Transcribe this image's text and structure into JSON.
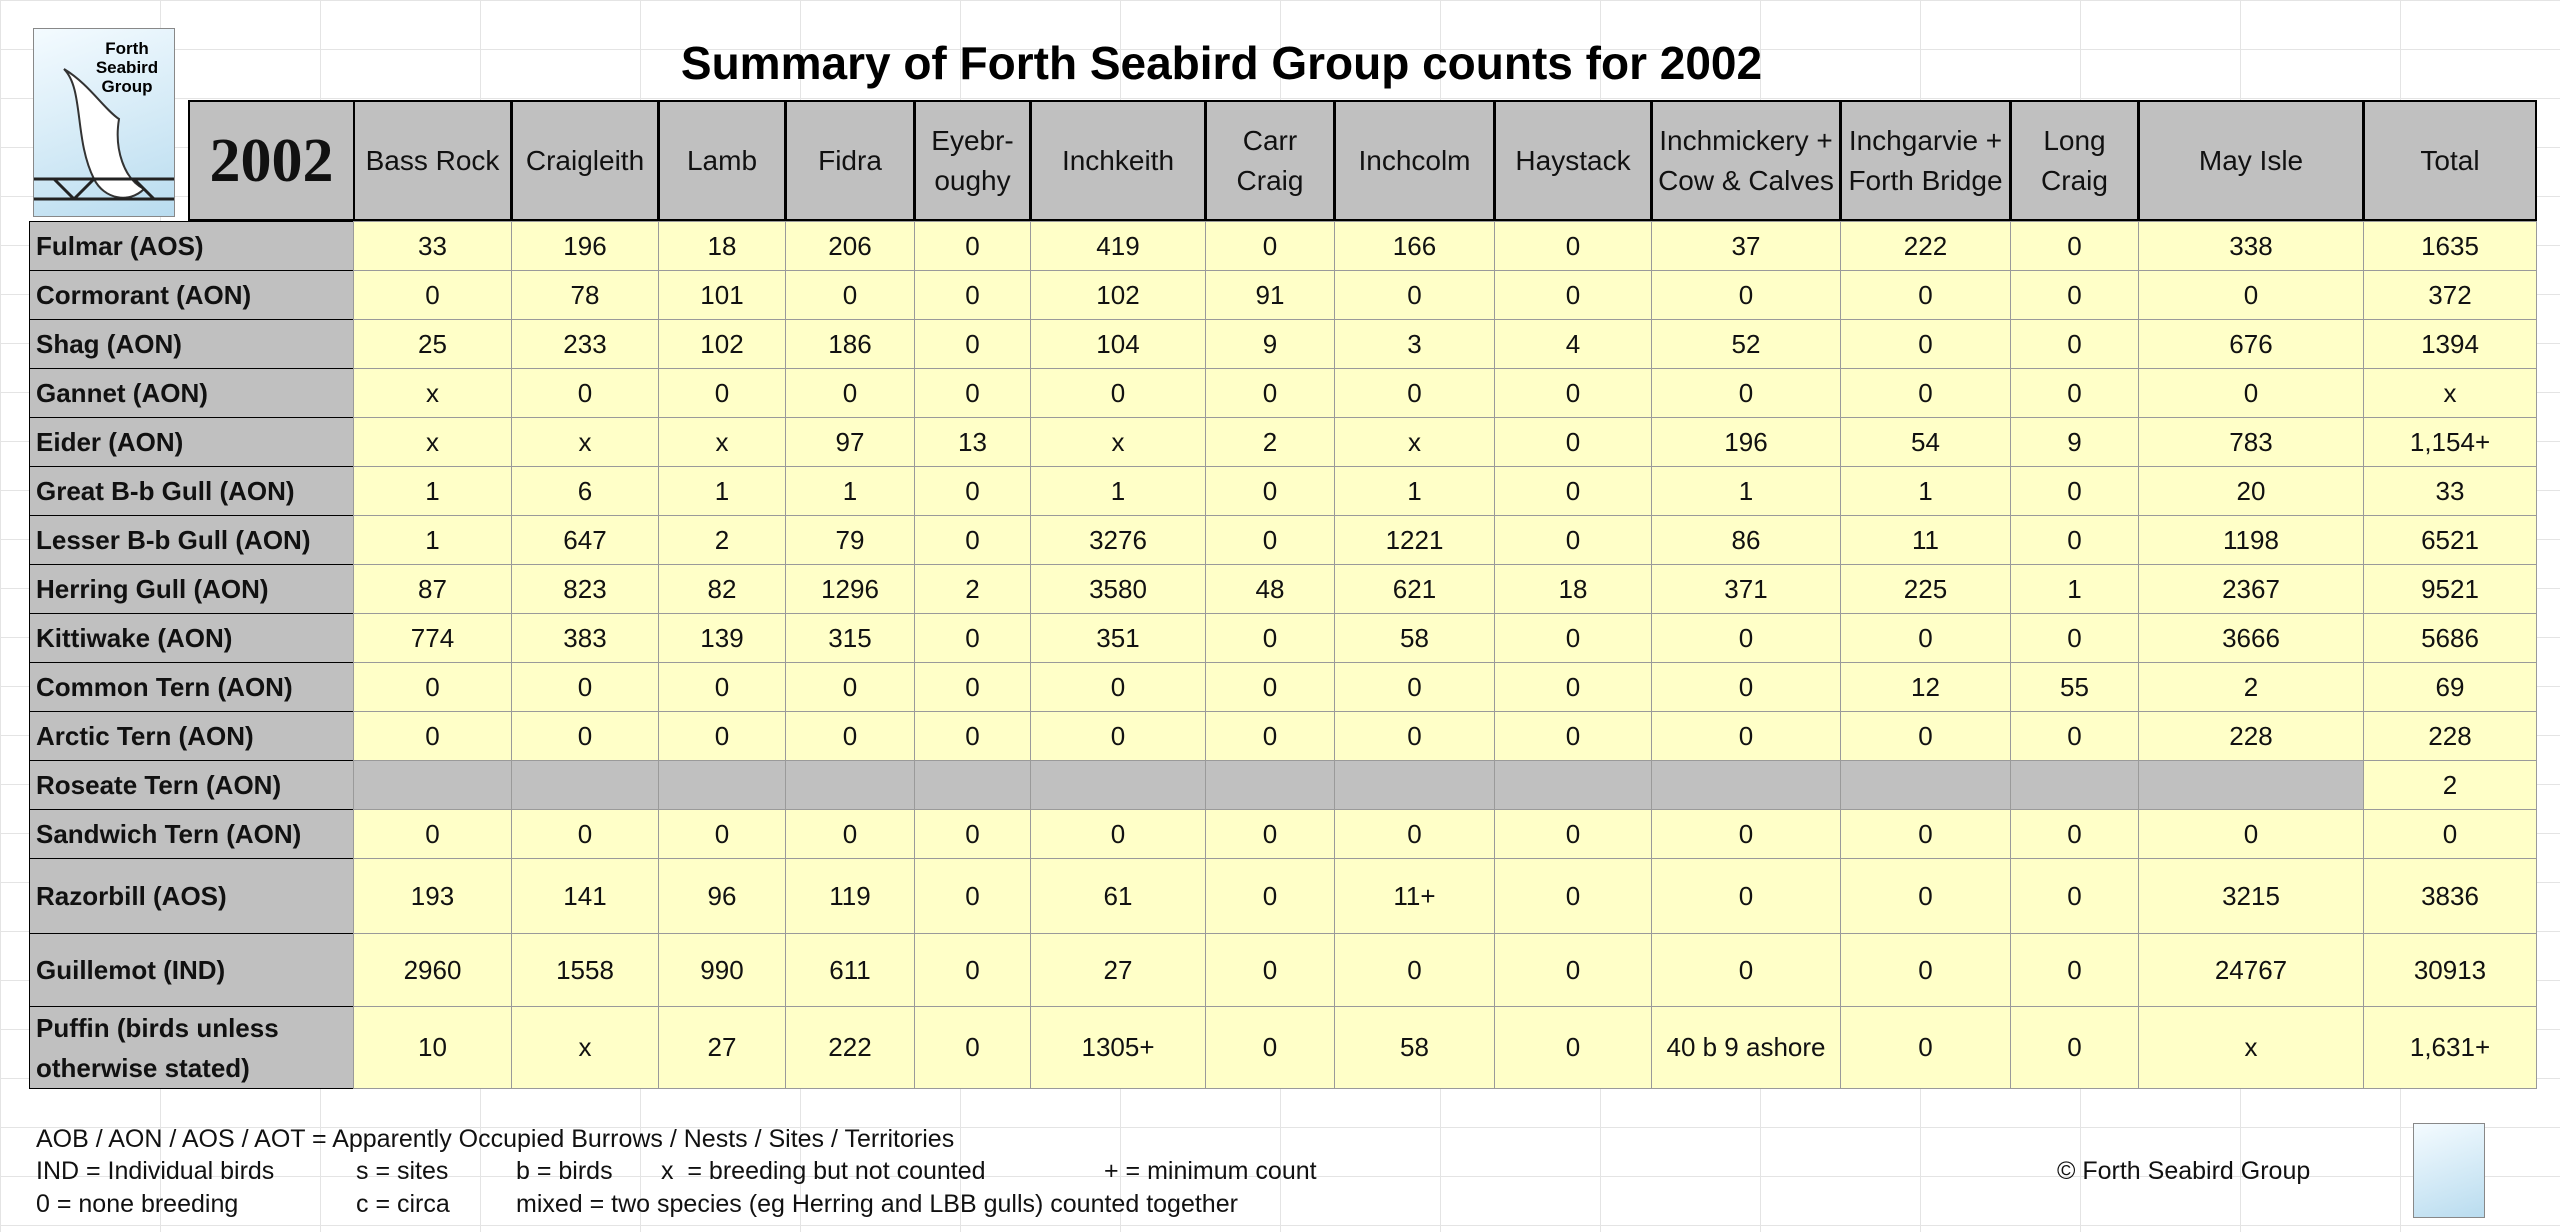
{
  "header": {
    "title": "Summary of Forth Seabird Group counts for 2002",
    "logo_text": "Forth Seabird Group",
    "year": "2002"
  },
  "table": {
    "columns": [
      "Bass Rock",
      "Craigleith",
      "Lamb",
      "Fidra",
      "Eyebr-oughy",
      "Inchkeith",
      "Carr Craig",
      "Inchcolm",
      "Haystack",
      "Inchmickery + Cow & Calves",
      "Inchgarvie + Forth Bridge",
      "Long Craig",
      "May Isle",
      "Total"
    ],
    "rows": [
      {
        "name": "Fulmar (AOS)",
        "cells": [
          33,
          196,
          18,
          206,
          0,
          419,
          0,
          166,
          0,
          37,
          222,
          0,
          338,
          1635
        ]
      },
      {
        "name": "Cormorant (AON)",
        "cells": [
          0,
          78,
          101,
          0,
          0,
          102,
          91,
          0,
          0,
          0,
          0,
          0,
          0,
          372
        ]
      },
      {
        "name": "Shag (AON)",
        "cells": [
          25,
          233,
          102,
          186,
          0,
          104,
          9,
          3,
          4,
          52,
          0,
          0,
          676,
          1394
        ]
      },
      {
        "name": "Gannet (AON)",
        "cells": [
          "x",
          0,
          0,
          0,
          0,
          0,
          0,
          0,
          0,
          0,
          0,
          0,
          0,
          "x"
        ]
      },
      {
        "name": "Eider (AON)",
        "cells": [
          "x",
          "x",
          "x",
          97,
          13,
          "x",
          2,
          "x",
          0,
          196,
          54,
          9,
          783,
          "1,154+"
        ]
      },
      {
        "name": "Great B-b Gull (AON)",
        "cells": [
          1,
          6,
          1,
          1,
          0,
          1,
          0,
          1,
          0,
          1,
          1,
          0,
          20,
          33
        ]
      },
      {
        "name": "Lesser B-b Gull (AON)",
        "cells": [
          1,
          647,
          2,
          79,
          0,
          3276,
          0,
          1221,
          0,
          86,
          11,
          0,
          1198,
          6521
        ]
      },
      {
        "name": "Herring Gull (AON)",
        "cells": [
          87,
          823,
          82,
          1296,
          2,
          3580,
          48,
          621,
          18,
          371,
          225,
          1,
          2367,
          9521
        ]
      },
      {
        "name": "Kittiwake (AON)",
        "cells": [
          774,
          383,
          139,
          315,
          0,
          351,
          0,
          58,
          0,
          0,
          0,
          0,
          3666,
          5686
        ]
      },
      {
        "name": "Common Tern (AON)",
        "cells": [
          0,
          0,
          0,
          0,
          0,
          0,
          0,
          0,
          0,
          0,
          12,
          55,
          2,
          69
        ]
      },
      {
        "name": "Arctic Tern (AON)",
        "cells": [
          0,
          0,
          0,
          0,
          0,
          0,
          0,
          0,
          0,
          0,
          0,
          0,
          228,
          228
        ]
      },
      {
        "name": "Roseate Tern (AON)",
        "cells": [
          null,
          null,
          null,
          null,
          null,
          null,
          null,
          null,
          null,
          null,
          null,
          null,
          null,
          2
        ]
      },
      {
        "name": "Sandwich Tern (AON)",
        "cells": [
          0,
          0,
          0,
          0,
          0,
          0,
          0,
          0,
          0,
          0,
          0,
          0,
          0,
          0
        ]
      },
      {
        "name": "Razorbill (AOS)",
        "cells": [
          193,
          141,
          96,
          119,
          0,
          61,
          0,
          "11+",
          0,
          0,
          0,
          0,
          3215,
          3836
        ]
      },
      {
        "name": "Guillemot (IND)",
        "cells": [
          2960,
          1558,
          990,
          611,
          0,
          27,
          0,
          0,
          0,
          0,
          0,
          0,
          24767,
          30913
        ]
      },
      {
        "name": "Puffin (birds unless otherwise stated)",
        "cells": [
          10,
          "x",
          27,
          222,
          0,
          "1305+",
          0,
          58,
          0,
          "40 b  9 ashore",
          0,
          0,
          "x",
          "1,631+"
        ]
      }
    ]
  },
  "footer": {
    "notes": [
      [
        "AOB / AON / AOS / AOT = Apparently Occupied Burrows / Nests / Sites / Territories"
      ],
      [
        "IND = Individual birds",
        "s = sites",
        "b = birds",
        "x  = breeding but not counted",
        "+ = minimum count"
      ],
      [
        "0 = none breeding",
        "c = circa",
        "mixed = two species (eg Herring and LBB gulls) counted together"
      ]
    ],
    "copyright": "© Forth Seabird Group"
  }
}
